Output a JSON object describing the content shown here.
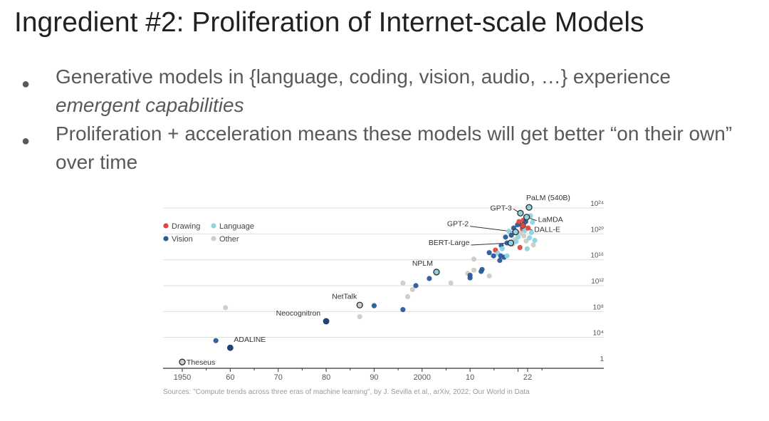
{
  "slide": {
    "title": "Ingredient #2: Proliferation of Internet-scale Models",
    "bullets": [
      {
        "text": "Generative models in {language, coding, vision, audio, …} experience ",
        "emphasis": "emergent capabilities"
      },
      {
        "text": "Proliferation + acceleration means these models will get better “on their own” over time",
        "emphasis": ""
      }
    ]
  },
  "chart_data": {
    "type": "scatter",
    "x_ticks": [
      "1950",
      "60",
      "70",
      "80",
      "90",
      "2000",
      "10",
      "22"
    ],
    "x_tick_values": [
      1950,
      1960,
      1970,
      1980,
      1990,
      2000,
      2010,
      2022
    ],
    "xlim": [
      1948,
      2027
    ],
    "y_log_base": 10,
    "y_ticks": [
      {
        "label": "1",
        "exponent": 0
      },
      {
        "label": "10⁴",
        "exponent": 4
      },
      {
        "label": "10⁸",
        "exponent": 8
      },
      {
        "label": "10¹²",
        "exponent": 12
      },
      {
        "label": "10¹⁶",
        "exponent": 16
      },
      {
        "label": "10²⁰",
        "exponent": 20
      },
      {
        "label": "10²⁴",
        "exponent": 24
      }
    ],
    "ylim_exponent": [
      -1,
      25
    ],
    "grid": true,
    "legend_position": "top-left",
    "categories": [
      {
        "key": "drawing",
        "name": "Drawing",
        "color": "#e2453d"
      },
      {
        "key": "language",
        "name": "Language",
        "color": "#8fd3df"
      },
      {
        "key": "vision",
        "name": "Vision",
        "color": "#2a5a9a"
      },
      {
        "key": "other",
        "name": "Other",
        "color": "#cfcdc4"
      }
    ],
    "labeled_points": [
      {
        "name": "Theseus",
        "x": 1950,
        "y_exp": 0.2,
        "category": "other"
      },
      {
        "name": "ADALINE",
        "x": 1960,
        "y_exp": 2.4,
        "category": "vision"
      },
      {
        "name": "Neocognitron",
        "x": 1980,
        "y_exp": 6.5,
        "category": "vision"
      },
      {
        "name": "NetTalk",
        "x": 1987,
        "y_exp": 9.0,
        "category": "other"
      },
      {
        "name": "NPLM",
        "x": 2003,
        "y_exp": 14.1,
        "category": "language"
      },
      {
        "name": "BERT-Large",
        "x": 2018.5,
        "y_exp": 18.6,
        "category": "language"
      },
      {
        "name": "GPT-2",
        "x": 2019.5,
        "y_exp": 20.3,
        "category": "language"
      },
      {
        "name": "GPT-3",
        "x": 2020.5,
        "y_exp": 23.2,
        "category": "language"
      },
      {
        "name": "PaLM (540B)",
        "x": 2022.3,
        "y_exp": 24.1,
        "category": "language"
      },
      {
        "name": "LaMDA",
        "x": 2021.8,
        "y_exp": 22.6,
        "category": "language"
      },
      {
        "name": "DALL-E",
        "x": 2021.0,
        "y_exp": 21.3,
        "category": "drawing"
      }
    ],
    "points": [
      {
        "x": 1957,
        "y_exp": 3.5,
        "category": "vision"
      },
      {
        "x": 1959,
        "y_exp": 8.6,
        "category": "other"
      },
      {
        "x": 1987,
        "y_exp": 7.2,
        "category": "other"
      },
      {
        "x": 1990,
        "y_exp": 8.9,
        "category": "vision"
      },
      {
        "x": 1996,
        "y_exp": 12.4,
        "category": "other"
      },
      {
        "x": 1997,
        "y_exp": 10.3,
        "category": "other"
      },
      {
        "x": 1998,
        "y_exp": 11.4,
        "category": "other"
      },
      {
        "x": 1998.7,
        "y_exp": 12.0,
        "category": "vision"
      },
      {
        "x": 1996,
        "y_exp": 8.3,
        "category": "vision"
      },
      {
        "x": 2001.5,
        "y_exp": 13.1,
        "category": "vision"
      },
      {
        "x": 2006,
        "y_exp": 12.4,
        "category": "other"
      },
      {
        "x": 2009.5,
        "y_exp": 13.9,
        "category": "other"
      },
      {
        "x": 2010,
        "y_exp": 13.2,
        "category": "vision"
      },
      {
        "x": 2010,
        "y_exp": 13.6,
        "category": "vision"
      },
      {
        "x": 2010.8,
        "y_exp": 14.4,
        "category": "other"
      },
      {
        "x": 2010.8,
        "y_exp": 16.1,
        "category": "other"
      },
      {
        "x": 2012.5,
        "y_exp": 14.5,
        "category": "vision"
      },
      {
        "x": 2012.3,
        "y_exp": 14.2,
        "category": "vision"
      },
      {
        "x": 2014,
        "y_exp": 13.5,
        "category": "other"
      },
      {
        "x": 2014,
        "y_exp": 17.1,
        "category": "vision"
      },
      {
        "x": 2014.9,
        "y_exp": 16.6,
        "category": "vision"
      },
      {
        "x": 2015.3,
        "y_exp": 17.5,
        "category": "drawing"
      },
      {
        "x": 2015.8,
        "y_exp": 17.0,
        "category": "language"
      },
      {
        "x": 2016.2,
        "y_exp": 15.9,
        "category": "vision"
      },
      {
        "x": 2016.4,
        "y_exp": 16.6,
        "category": "vision"
      },
      {
        "x": 2016.5,
        "y_exp": 18.2,
        "category": "vision"
      },
      {
        "x": 2016.7,
        "y_exp": 17.7,
        "category": "language"
      },
      {
        "x": 2017.1,
        "y_exp": 16.4,
        "category": "vision"
      },
      {
        "x": 2017.4,
        "y_exp": 19.5,
        "category": "vision"
      },
      {
        "x": 2017.7,
        "y_exp": 18.6,
        "category": "vision"
      },
      {
        "x": 2017.7,
        "y_exp": 16.6,
        "category": "language"
      },
      {
        "x": 2018.1,
        "y_exp": 20.4,
        "category": "language"
      },
      {
        "x": 2018.6,
        "y_exp": 19.8,
        "category": "vision"
      },
      {
        "x": 2018.9,
        "y_exp": 18.4,
        "category": "other"
      },
      {
        "x": 2019.1,
        "y_exp": 20.9,
        "category": "vision"
      },
      {
        "x": 2019.3,
        "y_exp": 19.1,
        "category": "other"
      },
      {
        "x": 2019.6,
        "y_exp": 18.8,
        "category": "language"
      },
      {
        "x": 2019.9,
        "y_exp": 21.4,
        "category": "vision"
      },
      {
        "x": 2020.0,
        "y_exp": 19.5,
        "category": "language"
      },
      {
        "x": 2020.2,
        "y_exp": 21.9,
        "category": "drawing"
      },
      {
        "x": 2020.4,
        "y_exp": 17.9,
        "category": "drawing"
      },
      {
        "x": 2020.5,
        "y_exp": 20.1,
        "category": "other"
      },
      {
        "x": 2020.9,
        "y_exp": 20.8,
        "category": "drawing"
      },
      {
        "x": 2021.1,
        "y_exp": 22.1,
        "category": "drawing"
      },
      {
        "x": 2021.2,
        "y_exp": 19.7,
        "category": "other"
      },
      {
        "x": 2021.4,
        "y_exp": 20.5,
        "category": "language"
      },
      {
        "x": 2021.6,
        "y_exp": 21.9,
        "category": "vision"
      },
      {
        "x": 2021.7,
        "y_exp": 18.9,
        "category": "other"
      },
      {
        "x": 2021.9,
        "y_exp": 17.7,
        "category": "language"
      },
      {
        "x": 2022.1,
        "y_exp": 20.9,
        "category": "drawing"
      },
      {
        "x": 2022.4,
        "y_exp": 19.4,
        "category": "language"
      },
      {
        "x": 2022.6,
        "y_exp": 22.8,
        "category": "language"
      },
      {
        "x": 2022.8,
        "y_exp": 20.2,
        "category": "language"
      },
      {
        "x": 2023.0,
        "y_exp": 21.8,
        "category": "language"
      },
      {
        "x": 2023.2,
        "y_exp": 18.3,
        "category": "other"
      },
      {
        "x": 2023.5,
        "y_exp": 19.0,
        "category": "language"
      }
    ],
    "source": "Sources: \"Compute trends across three eras of machine learning\", by J. Sevilla et al., arXiv, 2022; Our World in Data"
  }
}
